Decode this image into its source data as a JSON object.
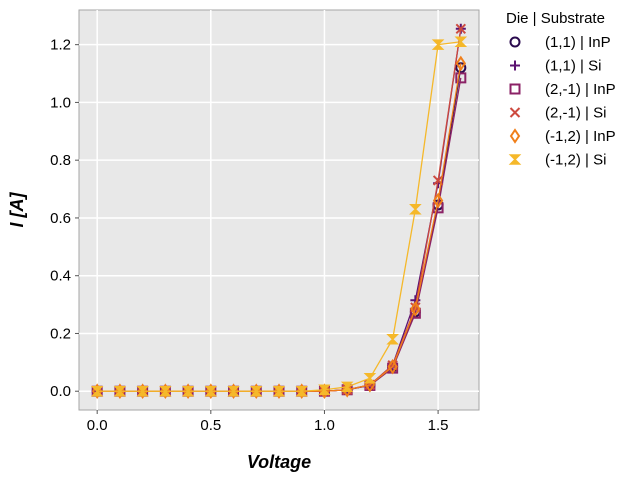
{
  "chart_data": {
    "type": "line",
    "xlabel": "Voltage",
    "ylabel": "I [A]",
    "xlim": [
      -0.08,
      1.68
    ],
    "ylim": [
      -0.065,
      1.32
    ],
    "xticks": [
      "0.0",
      "0.5",
      "1.0",
      "1.5"
    ],
    "xtick_values": [
      0,
      0.5,
      1.0,
      1.5
    ],
    "yticks": [
      "0.0",
      "0.2",
      "0.4",
      "0.6",
      "0.8",
      "1.0",
      "1.2"
    ],
    "ytick_values": [
      0,
      0.2,
      0.4,
      0.6,
      0.8,
      1.0,
      1.2
    ],
    "grid": true,
    "legend_title": "Die | Substrate",
    "legend_placement": "outside-top-right",
    "x": [
      0.0,
      0.1,
      0.2,
      0.3,
      0.4,
      0.5,
      0.6,
      0.7,
      0.8,
      0.9,
      1.0,
      1.1,
      1.2,
      1.3,
      1.4,
      1.5,
      1.6
    ],
    "series": [
      {
        "name": "(1,1) | InP",
        "marker": "circle",
        "color": "#2a0a4e",
        "values": [
          0,
          0,
          0,
          0,
          0,
          0,
          0,
          0,
          0,
          0,
          0,
          0.005,
          0.02,
          0.085,
          0.275,
          0.645,
          1.12
        ]
      },
      {
        "name": "(1,1) | Si",
        "marker": "plus",
        "color": "#5c1371",
        "values": [
          0,
          0,
          0,
          0,
          0,
          0,
          0,
          0,
          0,
          0,
          0,
          0.005,
          0.022,
          0.09,
          0.315,
          0.72,
          1.255
        ]
      },
      {
        "name": "(2,-1) | InP",
        "marker": "square",
        "color": "#8b2266",
        "values": [
          0,
          0,
          0,
          0,
          0,
          0,
          0,
          0,
          0,
          0,
          0,
          0.005,
          0.02,
          0.08,
          0.27,
          0.635,
          1.085
        ]
      },
      {
        "name": "(2,-1) | Si",
        "marker": "x",
        "color": "#cd4a3f",
        "values": [
          0,
          0,
          0,
          0,
          0,
          0,
          0,
          0,
          0,
          0,
          0,
          0.005,
          0.022,
          0.09,
          0.29,
          0.73,
          1.255
        ]
      },
      {
        "name": "(-1,2) | InP",
        "marker": "diamond",
        "color": "#f07f1a",
        "values": [
          0,
          0,
          0,
          0,
          0,
          0,
          0,
          0,
          0,
          0,
          0,
          0.005,
          0.022,
          0.085,
          0.285,
          0.66,
          1.135
        ]
      },
      {
        "name": "(-1,2) | Si",
        "marker": "hourglass",
        "color": "#f5b82a",
        "values": [
          0,
          0,
          0,
          0,
          0,
          0,
          0,
          0,
          0,
          0,
          0.005,
          0.015,
          0.045,
          0.18,
          0.63,
          1.2,
          1.21
        ]
      }
    ]
  }
}
